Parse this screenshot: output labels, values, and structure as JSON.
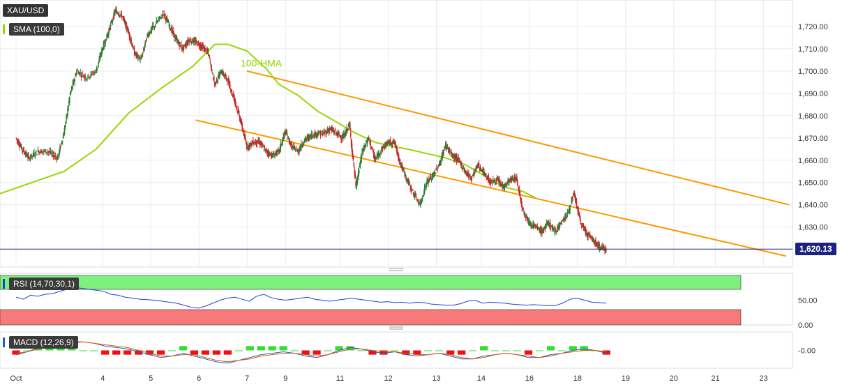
{
  "chart_data": [
    {
      "type": "candlestick",
      "symbol": "XAU/USD",
      "indicator_label": "SMA (100,0)",
      "overlay_label": "100-HMA",
      "last_price_label": "1,620.13",
      "y_ticks": [
        "1,720.00",
        "1,710.00",
        "1,700.00",
        "1,690.00",
        "1,680.00",
        "1,670.00",
        "1,660.00",
        "1,650.00",
        "1,640.00",
        "1,630.00"
      ],
      "y_tick_values": [
        1720,
        1710,
        1700,
        1690,
        1680,
        1670,
        1660,
        1650,
        1640,
        1630
      ],
      "ylim": [
        1613,
        1730
      ],
      "x_ticks": [
        "Oct",
        "4",
        "5",
        "6",
        "7",
        "9",
        "11",
        "12",
        "13",
        "14",
        "16",
        "18",
        "19",
        "20",
        "21",
        "23"
      ],
      "x_tick_positions": [
        0,
        2.7,
        4.2,
        5.7,
        7.2,
        8.4,
        10.1,
        11.6,
        13.1,
        14.5,
        16.0,
        17.5,
        19.0,
        20.5,
        21.8,
        23.3
      ],
      "xlim": [
        -0.5,
        24.2
      ],
      "last_price": 1620.13,
      "close_path": [
        [
          0,
          1670
        ],
        [
          0.2,
          1665
        ],
        [
          0.4,
          1661
        ],
        [
          0.7,
          1664
        ],
        [
          1.0,
          1664
        ],
        [
          1.3,
          1661
        ],
        [
          1.5,
          1672
        ],
        [
          1.7,
          1690
        ],
        [
          1.9,
          1700
        ],
        [
          2.2,
          1697
        ],
        [
          2.5,
          1700
        ],
        [
          2.7,
          1710
        ],
        [
          2.9,
          1718
        ],
        [
          3.1,
          1727
        ],
        [
          3.3,
          1725
        ],
        [
          3.5,
          1718
        ],
        [
          3.7,
          1708
        ],
        [
          3.9,
          1705
        ],
        [
          4.1,
          1716
        ],
        [
          4.3,
          1720
        ],
        [
          4.6,
          1726
        ],
        [
          4.8,
          1720
        ],
        [
          5.0,
          1714
        ],
        [
          5.2,
          1710
        ],
        [
          5.4,
          1714
        ],
        [
          5.6,
          1713
        ],
        [
          5.8,
          1711
        ],
        [
          6.0,
          1708
        ],
        [
          6.2,
          1694
        ],
        [
          6.4,
          1700
        ],
        [
          6.6,
          1696
        ],
        [
          6.8,
          1688
        ],
        [
          7.0,
          1678
        ],
        [
          7.2,
          1666
        ],
        [
          7.4,
          1668
        ],
        [
          7.6,
          1668
        ],
        [
          7.8,
          1664
        ],
        [
          8.0,
          1662
        ],
        [
          8.2,
          1664
        ],
        [
          8.4,
          1673
        ],
        [
          8.6,
          1666
        ],
        [
          8.8,
          1664
        ],
        [
          9.0,
          1669
        ],
        [
          9.2,
          1671
        ],
        [
          9.4,
          1672
        ],
        [
          9.6,
          1672
        ],
        [
          9.8,
          1674
        ],
        [
          10.0,
          1672
        ],
        [
          10.2,
          1670
        ],
        [
          10.4,
          1676
        ],
        [
          10.6,
          1648
        ],
        [
          10.8,
          1664
        ],
        [
          11.0,
          1670
        ],
        [
          11.2,
          1660
        ],
        [
          11.4,
          1665
        ],
        [
          11.6,
          1668
        ],
        [
          11.8,
          1668
        ],
        [
          12.0,
          1658
        ],
        [
          12.2,
          1651
        ],
        [
          12.4,
          1645
        ],
        [
          12.6,
          1640
        ],
        [
          12.8,
          1650
        ],
        [
          13.0,
          1653
        ],
        [
          13.2,
          1658
        ],
        [
          13.4,
          1667
        ],
        [
          13.6,
          1662
        ],
        [
          13.8,
          1660
        ],
        [
          14.0,
          1655
        ],
        [
          14.2,
          1652
        ],
        [
          14.4,
          1658
        ],
        [
          14.6,
          1654
        ],
        [
          14.8,
          1650
        ],
        [
          15.0,
          1651
        ],
        [
          15.2,
          1648
        ],
        [
          15.4,
          1651
        ],
        [
          15.6,
          1652
        ],
        [
          15.8,
          1638
        ],
        [
          16.0,
          1632
        ],
        [
          16.2,
          1630
        ],
        [
          16.4,
          1628
        ],
        [
          16.6,
          1632
        ],
        [
          16.8,
          1628
        ],
        [
          17.0,
          1632
        ],
        [
          17.2,
          1636
        ],
        [
          17.4,
          1645
        ],
        [
          17.6,
          1632
        ],
        [
          17.8,
          1627
        ],
        [
          18.0,
          1624
        ],
        [
          18.2,
          1621
        ],
        [
          18.4,
          1620.13
        ]
      ],
      "sma_100": [
        [
          -0.5,
          1645
        ],
        [
          0.5,
          1650
        ],
        [
          1.5,
          1655
        ],
        [
          2.5,
          1665
        ],
        [
          3.0,
          1673
        ],
        [
          3.5,
          1681
        ],
        [
          4.5,
          1692
        ],
        [
          5.5,
          1702
        ],
        [
          6.2,
          1712
        ],
        [
          6.6,
          1712
        ],
        [
          7.2,
          1709
        ],
        [
          7.8,
          1701
        ],
        [
          8.2,
          1694
        ],
        [
          8.8,
          1689
        ],
        [
          9.4,
          1682
        ],
        [
          10.0,
          1677
        ],
        [
          10.6,
          1672
        ],
        [
          11.2,
          1668
        ],
        [
          11.8,
          1666
        ],
        [
          12.2,
          1665
        ],
        [
          12.8,
          1663
        ],
        [
          13.4,
          1661
        ],
        [
          14.0,
          1658
        ],
        [
          14.6,
          1653
        ],
        [
          15.2,
          1648
        ],
        [
          15.8,
          1646
        ],
        [
          16.2,
          1643
        ]
      ],
      "channel_upper": [
        [
          7.2,
          1700
        ],
        [
          24.1,
          1640
        ]
      ],
      "channel_lower": [
        [
          5.6,
          1678
        ],
        [
          24.0,
          1617
        ]
      ]
    },
    {
      "type": "line",
      "indicator_label": "RSI (14,70,30,1)",
      "y_ticks": [
        "50.00",
        "0.00"
      ],
      "y_tick_values": [
        50,
        0
      ],
      "ylim": [
        0,
        100
      ],
      "overbought": 70,
      "oversold": 30,
      "values": [
        56,
        52,
        60,
        58,
        62,
        63,
        68,
        72,
        76,
        74,
        72,
        70,
        68,
        62,
        60,
        56,
        54,
        52,
        51,
        50,
        48,
        46,
        44,
        40,
        36,
        34,
        38,
        44,
        50,
        54,
        56,
        52,
        48,
        58,
        62,
        55,
        52,
        50,
        52,
        54,
        56,
        52,
        50,
        48,
        50,
        52,
        54,
        52,
        50,
        48,
        46,
        47,
        45,
        46,
        44,
        46,
        45,
        42,
        41,
        40,
        40,
        43,
        48,
        50,
        44,
        46,
        45,
        44,
        42,
        41,
        40,
        41,
        40,
        39,
        39,
        44,
        52,
        54,
        50,
        46,
        45,
        44
      ]
    },
    {
      "type": "line",
      "indicator_label": "MACD (12,26,9)",
      "y_ticks": [
        "-0.00"
      ],
      "y_tick_values": [
        0
      ],
      "ylim": [
        -1.2,
        1.2
      ],
      "macd": [
        -0.3,
        -0.1,
        0.2,
        0.4,
        0.5,
        0.6,
        0.6,
        0.5,
        0.3,
        0.2,
        0.1,
        -0.1,
        -0.3,
        -0.5,
        -0.4,
        -0.2,
        -0.4,
        -0.6,
        -0.8,
        -0.9,
        -0.7,
        -0.5,
        -0.3,
        -0.2,
        -0.1,
        -0.2,
        -0.4,
        -0.5,
        -0.3,
        0.0,
        0.2,
        0.1,
        -0.1,
        -0.2,
        -0.1,
        -0.3,
        -0.4,
        -0.3,
        -0.2,
        -0.4,
        -0.6,
        -0.6,
        -0.4,
        -0.3,
        -0.2,
        -0.3,
        -0.5,
        -0.5,
        -0.3,
        -0.2,
        0.0,
        0.1,
        0.0,
        -0.2
      ],
      "signal": [
        -0.2,
        -0.1,
        0.1,
        0.3,
        0.4,
        0.5,
        0.6,
        0.5,
        0.4,
        0.3,
        0.2,
        0.0,
        -0.2,
        -0.4,
        -0.4,
        -0.3,
        -0.3,
        -0.5,
        -0.7,
        -0.8,
        -0.7,
        -0.6,
        -0.4,
        -0.3,
        -0.2,
        -0.2,
        -0.3,
        -0.4,
        -0.3,
        -0.1,
        0.1,
        0.1,
        0.0,
        -0.1,
        -0.1,
        -0.2,
        -0.3,
        -0.3,
        -0.2,
        -0.3,
        -0.5,
        -0.6,
        -0.5,
        -0.3,
        -0.2,
        -0.3,
        -0.4,
        -0.5,
        -0.4,
        -0.2,
        -0.1,
        0.0,
        0.0,
        -0.1
      ]
    }
  ],
  "colors": {
    "candle_up": "#2e7d32",
    "candle_down": "#c62828",
    "sma": "#9ad600",
    "channel": "#ff9800",
    "price_line": "#1a237e",
    "rsi_line": "#1e40d8",
    "rsi_over": "#7ef07e",
    "rsi_under": "#f77a7a",
    "macd_line": "#1565c0",
    "signal_line": "#e65100",
    "hist_up": "#33dd33",
    "hist_down": "#ee1111",
    "grid": "#e8ecf0",
    "axis_text": "#333333"
  }
}
